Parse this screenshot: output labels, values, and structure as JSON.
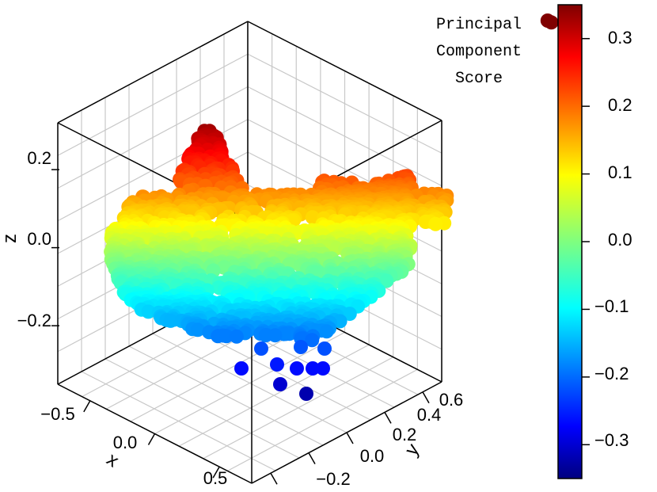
{
  "chart_data": {
    "type": "scatter",
    "title": "",
    "xlabel": "x",
    "ylabel": "y",
    "zlabel": "z",
    "x_ticks": [
      "−0.5",
      "0.0",
      "0.5"
    ],
    "y_ticks": [
      "−0.2",
      "0.0",
      "0.2",
      "0.4",
      "0.6"
    ],
    "z_ticks": [
      "−0.2",
      "0.0",
      "0.2"
    ],
    "xlim": [
      -0.75,
      0.75
    ],
    "ylim": [
      -0.3,
      0.7
    ],
    "zlim": [
      -0.35,
      0.32
    ],
    "colorbar": {
      "title_lines": [
        "Principal",
        "Component",
        "Score"
      ],
      "ticks": [
        "0.3",
        "0.2",
        "0.1",
        "0.0",
        "−0.1",
        "−0.2",
        "−0.3"
      ],
      "range": [
        -0.35,
        0.35
      ],
      "colormap": "jet"
    },
    "grid": true,
    "outliers": [
      {
        "x": 0.15,
        "y": 0.62,
        "z": 0.16
      },
      {
        "x": 0.18,
        "y": 0.66,
        "z": 0.14
      }
    ]
  }
}
